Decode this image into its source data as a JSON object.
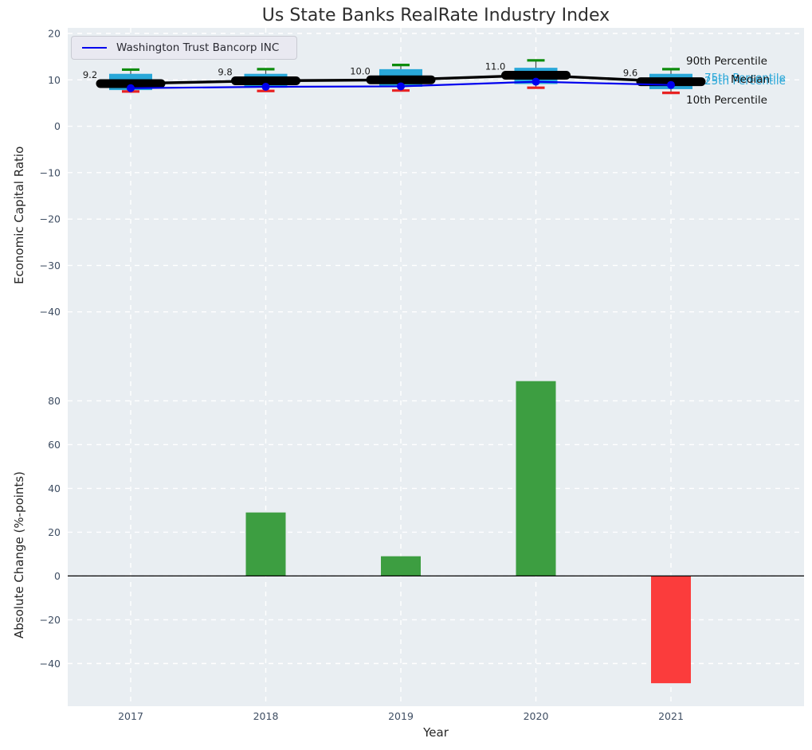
{
  "figure": {
    "title": "Us State Banks RealRate Industry Index",
    "colors": {
      "plot_bg": "#e9eef2",
      "grid": "#ffffff",
      "box_fill": "#29a7d8",
      "cap_90th": "#0d8c0d",
      "cap_10th": "#e82222",
      "median_line": "#000000",
      "company_line": "#0000ee",
      "bar_positive": "#3d9e41",
      "bar_negative": "#fb3c3c",
      "tick_label": "#3f4e63",
      "axis_label": "#262626"
    }
  },
  "legend": {
    "label": "Washington Trust Bancorp INC"
  },
  "chart_data": [
    {
      "type": "line",
      "subtype": "percentile-boxes-with-company-line",
      "title": "Us State Banks RealRate Industry Index",
      "ylabel": "Economic Capital Ratio",
      "x": [
        "2017",
        "2018",
        "2019",
        "2020",
        "2021"
      ],
      "yticks": [
        20,
        10,
        0,
        -10,
        -20,
        -30,
        -40
      ],
      "ylim": [
        -51.2,
        21.2
      ],
      "grid": true,
      "legend_position": "upper left",
      "series": [
        {
          "name": "Washington Trust Bancorp INC",
          "role": "company",
          "color": "#0000ee",
          "values": [
            8.2,
            8.5,
            8.6,
            9.6,
            8.9
          ]
        },
        {
          "name": "Median",
          "role": "median",
          "color": "#000000",
          "values": [
            9.2,
            9.8,
            10.0,
            11.0,
            9.6
          ],
          "point_labels": [
            "9.2",
            "9.8",
            "10.0",
            "11.0",
            "9.6"
          ]
        },
        {
          "name": "90th Percentile",
          "role": "cap-top",
          "color": "#0d8c0d",
          "values": [
            12.2,
            12.3,
            13.2,
            14.2,
            12.3
          ]
        },
        {
          "name": "75th Percentile",
          "role": "box-top",
          "color": "#29a7d8",
          "values": [
            11.3,
            11.3,
            12.3,
            12.6,
            11.3
          ]
        },
        {
          "name": "25th Percentile",
          "role": "box-bottom",
          "color": "#29a7d8",
          "values": [
            7.8,
            8.3,
            8.5,
            9.1,
            8.0
          ]
        },
        {
          "name": "10th Percentile",
          "role": "cap-bottom",
          "color": "#e82222",
          "values": [
            7.5,
            7.6,
            7.7,
            8.3,
            7.2
          ]
        }
      ],
      "annotations": [
        {
          "text": "90th Percentile",
          "color": "#151515"
        },
        {
          "text": "75th Percentile",
          "color": "#29a7d8"
        },
        {
          "text": "Median",
          "color": "#151515"
        },
        {
          "text": "25th Percentile",
          "color": "#29a7d8"
        },
        {
          "text": "10th Percentile",
          "color": "#151515"
        }
      ]
    },
    {
      "type": "bar",
      "ylabel": "Absolute Change (%-points)",
      "xlabel": "Year",
      "categories": [
        "2017",
        "2018",
        "2019",
        "2020",
        "2021"
      ],
      "values": [
        0,
        29,
        9,
        89,
        -49
      ],
      "bar_colors": [
        "#3d9e41",
        "#3d9e41",
        "#3d9e41",
        "#3d9e41",
        "#fb3c3c"
      ],
      "yticks": [
        80,
        60,
        40,
        20,
        0,
        -20,
        -40
      ],
      "ylim": [
        -59.5,
        95.8
      ],
      "zero_line": true,
      "grid": true
    }
  ]
}
